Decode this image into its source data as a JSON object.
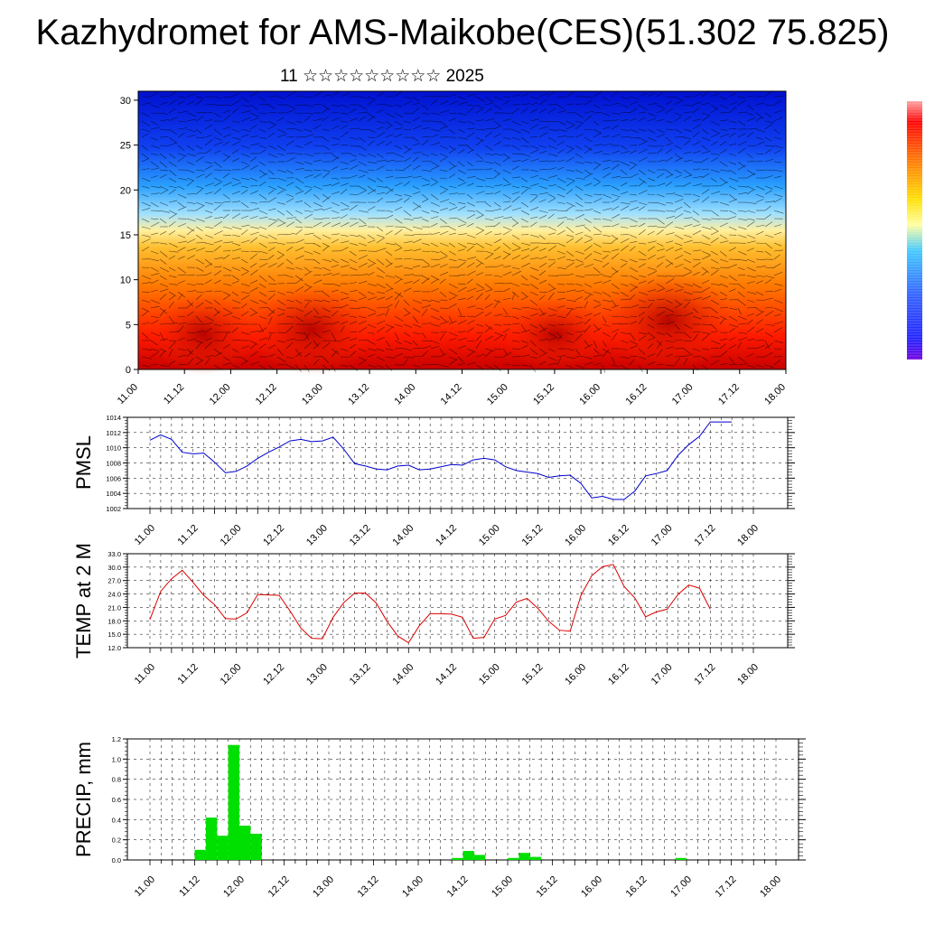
{
  "title": "Kazhydromet for AMS-Maikobe(CES)(51.302 75.825)",
  "subtitle": "11 ☆☆☆☆☆☆☆☆☆ 2025",
  "x_ticks": [
    "11.00",
    "11.12",
    "12.00",
    "12.12",
    "13.00",
    "13.12",
    "14.00",
    "14.12",
    "15.00",
    "15.12",
    "16.00",
    "16.12",
    "17.00",
    "17.12",
    "18.00"
  ],
  "colors": {
    "pmsl_line": "#0000cc",
    "temp_line": "#dd0000",
    "precip_bar": "#00e000"
  },
  "chart_data": [
    {
      "type": "heatmap",
      "name_hint": "cross-section",
      "y_ticks": [
        "0",
        "5",
        "10",
        "15",
        "20",
        "25",
        "30"
      ],
      "ylim": [
        0,
        31
      ],
      "color_scale": [
        "#ff0000",
        "#ff8000",
        "#ffff80",
        "#00c0ff",
        "#0000ff",
        "#6000e0"
      ]
    },
    {
      "type": "line",
      "ylabel": "PMSL",
      "ylim": [
        1002,
        1014
      ],
      "y_ticks": [
        "1002",
        "1004",
        "1006",
        "1008",
        "1010",
        "1012",
        "1014"
      ],
      "x_range": [
        0,
        14
      ],
      "x": [
        0,
        0.25,
        0.5,
        0.75,
        1,
        1.25,
        1.5,
        1.75,
        2,
        2.25,
        2.5,
        2.75,
        3,
        3.25,
        3.5,
        3.75,
        4,
        4.25,
        4.5,
        4.75,
        5,
        5.25,
        5.5,
        5.75,
        6,
        6.25,
        6.5,
        6.75,
        7,
        7.25,
        7.5,
        7.75,
        8,
        8.25,
        8.5,
        8.75,
        9,
        9.25,
        9.5,
        9.75,
        10,
        10.25,
        10.5,
        10.75,
        11,
        11.25,
        11.5,
        11.75,
        12,
        12.25,
        12.5,
        12.75,
        13,
        13.25,
        13.5
      ],
      "values": [
        1011.0,
        1011.7,
        1011.1,
        1009.4,
        1009.2,
        1009.3,
        1008.1,
        1006.7,
        1006.9,
        1007.6,
        1008.6,
        1009.4,
        1010.1,
        1010.9,
        1011.1,
        1010.8,
        1010.9,
        1011.4,
        1009.8,
        1007.9,
        1007.6,
        1007.2,
        1007.1,
        1007.6,
        1007.7,
        1007.1,
        1007.2,
        1007.5,
        1007.8,
        1007.7,
        1008.4,
        1008.6,
        1008.4,
        1007.5,
        1007.0,
        1006.8,
        1006.6,
        1006.1,
        1006.3,
        1006.4,
        1005.3,
        1003.4,
        1003.6,
        1003.2,
        1003.2,
        1004.3,
        1006.3,
        1006.6,
        1007.0,
        1009.0,
        1010.4,
        1011.5,
        1013.4,
        1013.4,
        1013.4
      ]
    },
    {
      "type": "line",
      "ylabel": "TEMP at 2 M",
      "ylim": [
        12.0,
        33.0
      ],
      "y_ticks": [
        "12.0",
        "15.0",
        "18.0",
        "21.0",
        "24.0",
        "27.0",
        "30.0",
        "33.0"
      ],
      "x_range": [
        0,
        14
      ],
      "x": [
        0,
        0.25,
        0.5,
        0.75,
        1,
        1.25,
        1.5,
        1.75,
        2,
        2.25,
        2.5,
        2.75,
        3,
        3.25,
        3.5,
        3.75,
        4,
        4.25,
        4.5,
        4.75,
        5,
        5.25,
        5.5,
        5.75,
        6,
        6.25,
        6.5,
        6.75,
        7,
        7.25,
        7.5,
        7.75,
        8,
        8.25,
        8.5,
        8.75,
        9,
        9.25,
        9.5,
        9.75,
        10,
        10.25,
        10.5,
        10.75,
        11,
        11.25,
        11.5,
        11.75,
        12,
        12.25,
        12.5,
        12.75,
        13
      ],
      "values": [
        18.3,
        24.6,
        27.4,
        29.3,
        26.6,
        23.7,
        21.6,
        18.5,
        18.4,
        19.8,
        23.9,
        23.8,
        23.7,
        20.2,
        16.4,
        14.1,
        14.0,
        18.8,
        22.1,
        24.2,
        24.2,
        22.0,
        17.9,
        14.6,
        13.1,
        16.9,
        19.6,
        19.6,
        19.5,
        18.8,
        14.1,
        14.3,
        18.4,
        19.2,
        22.2,
        23.0,
        20.8,
        17.9,
        15.9,
        15.7,
        23.7,
        28.1,
        30.1,
        30.6,
        25.7,
        23.1,
        18.9,
        20.0,
        20.6,
        23.9,
        26.0,
        25.3,
        20.6
      ]
    },
    {
      "type": "bar",
      "ylabel": "PRECIP, mm",
      "ylim": [
        0.0,
        1.2
      ],
      "y_ticks": [
        "0.0",
        "0.2",
        "0.4",
        "0.6",
        "0.8",
        "1.0",
        "1.2"
      ],
      "x_range": [
        0,
        14
      ],
      "bar_width": 0.25,
      "x": [
        1.125,
        1.375,
        1.625,
        1.875,
        2.125,
        2.375,
        6.875,
        7.125,
        7.375,
        8.125,
        8.375,
        8.625,
        11.875
      ],
      "values": [
        0.1,
        0.42,
        0.24,
        1.14,
        0.34,
        0.26,
        0.02,
        0.09,
        0.05,
        0.02,
        0.07,
        0.03,
        0.02
      ]
    }
  ]
}
